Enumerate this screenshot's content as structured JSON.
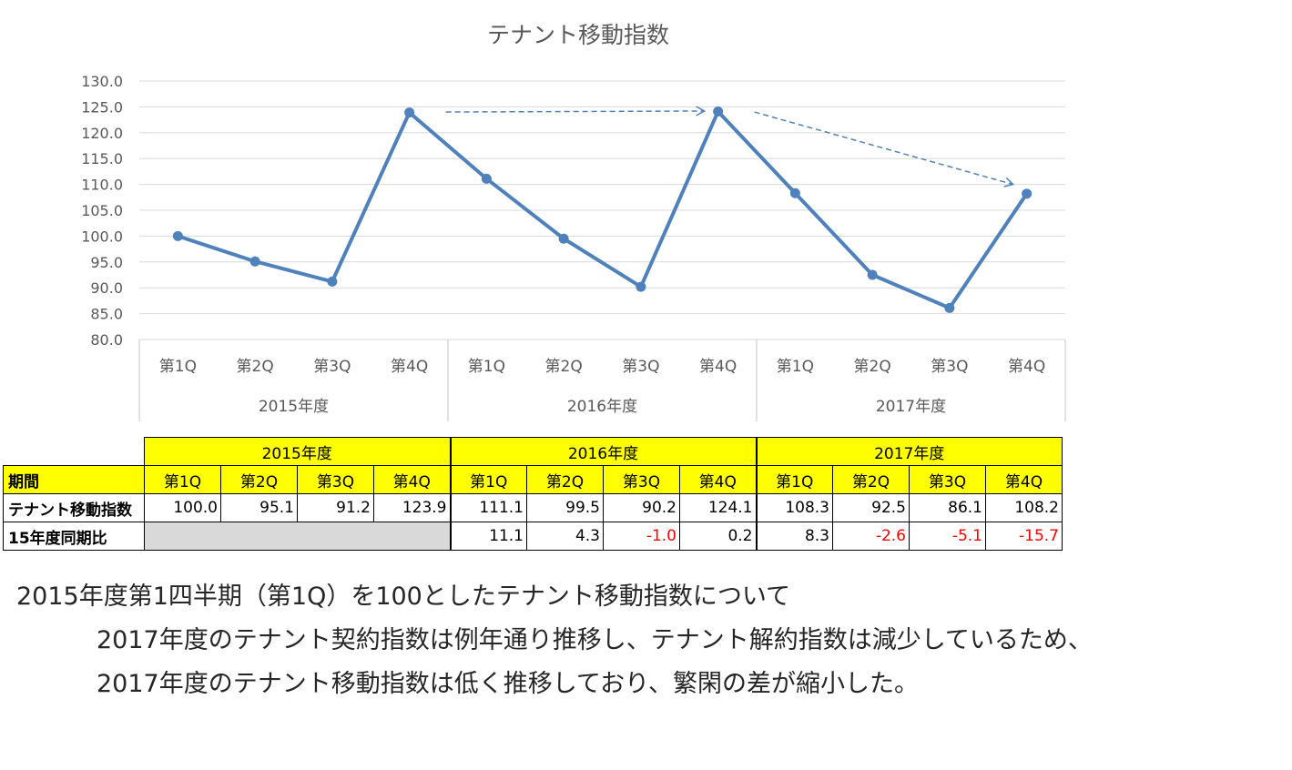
{
  "chart_data": {
    "type": "line",
    "title": "テナント移動指数",
    "xlabel": "",
    "ylabel": "",
    "ylim": [
      80,
      130
    ],
    "yticks": [
      "130.0",
      "125.0",
      "120.0",
      "115.0",
      "110.0",
      "105.0",
      "100.0",
      "95.0",
      "90.0",
      "85.0",
      "80.0"
    ],
    "categories": [
      "第1Q",
      "第2Q",
      "第3Q",
      "第4Q",
      "第1Q",
      "第2Q",
      "第3Q",
      "第4Q",
      "第1Q",
      "第2Q",
      "第3Q",
      "第4Q"
    ],
    "groups": [
      "2015年度",
      "2016年度",
      "2017年度"
    ],
    "series": [
      {
        "name": "",
        "values": [
          100.0,
          95.1,
          91.2,
          123.9,
          111.1,
          99.5,
          90.2,
          124.1,
          108.3,
          92.5,
          86.1,
          108.2
        ]
      }
    ],
    "grid": true,
    "legend": "none",
    "annotations": [
      {
        "type": "dashed-arrow",
        "from": [
          3,
          124.0
        ],
        "to": [
          7,
          124.2
        ]
      },
      {
        "type": "dashed-arrow",
        "from": [
          7,
          124.0
        ],
        "to": [
          11,
          110.0
        ]
      }
    ],
    "colors": {
      "line": "#4f81bd",
      "grid": "#d9d9d9",
      "axis_text": "#595959"
    }
  },
  "table": {
    "years": [
      "2015年度",
      "2016年度",
      "2017年度"
    ],
    "period_label": "期間",
    "quarters": [
      "第1Q",
      "第2Q",
      "第3Q",
      "第4Q",
      "第1Q",
      "第2Q",
      "第3Q",
      "第4Q",
      "第1Q",
      "第2Q",
      "第3Q",
      "第4Q"
    ],
    "index_label": "テナント移動指数",
    "index_values": [
      "100.0",
      "95.1",
      "91.2",
      "123.9",
      "111.1",
      "99.5",
      "90.2",
      "124.1",
      "108.3",
      "92.5",
      "86.1",
      "108.2"
    ],
    "yoy_label": "15年度同期比",
    "yoy_values": [
      "11.1",
      "4.3",
      "-1.0",
      "0.2",
      "8.3",
      "-2.6",
      "-5.1",
      "-15.7"
    ],
    "colors": {
      "header_fill": "#ffff00",
      "blank_fill": "#d9d9d9",
      "negative": "#ff0000"
    }
  },
  "notes": {
    "line1": "2015年度第1四半期（第1Q）を100としたテナント移動指数について",
    "line2": "2017年度のテナント契約指数は例年通り推移し、テナント解約指数は減少しているため、",
    "line3": "2017年度のテナント移動指数は低く推移しており、繁閑の差が縮小した。"
  }
}
